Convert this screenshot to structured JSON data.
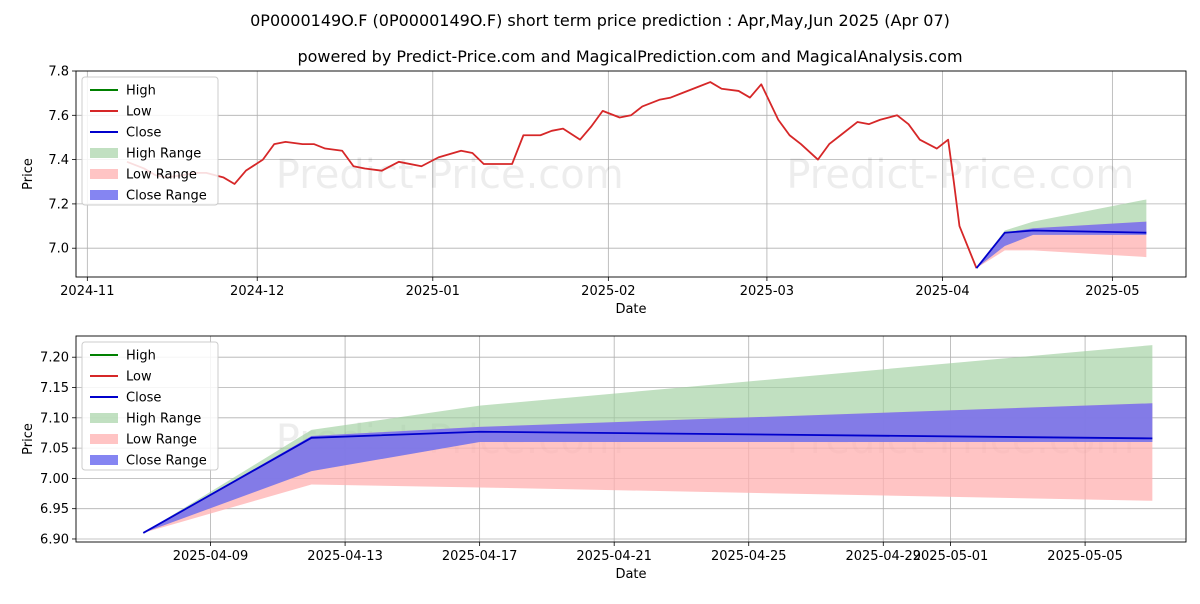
{
  "title": "0P0000149O.F (0P0000149O.F) short term price prediction : Apr,May,Jun 2025 (Apr 07)",
  "subtitle": "powered by Predict-Price.com and MagicalPrediction.com and MagicalAnalysis.com",
  "watermark": "Predict-Price.com",
  "colors": {
    "high": "#008000",
    "low": "#d62728",
    "close": "#0000cc",
    "high_range": "#9fd09f",
    "low_range": "#ffb0b0",
    "close_range": "#7070f0"
  },
  "chart_data": [
    {
      "type": "line",
      "xlabel": "Date",
      "ylabel": "Price",
      "xlim": [
        "2024-10-30",
        "2025-05-14"
      ],
      "ylim": [
        6.87,
        7.8
      ],
      "x_ticks": [
        "2024-11",
        "2024-12",
        "2025-01",
        "2025-02",
        "2025-03",
        "2025-04",
        "2025-05"
      ],
      "x_tick_dates": [
        "2024-11-01",
        "2024-12-01",
        "2025-01-01",
        "2025-02-01",
        "2025-03-01",
        "2025-04-01",
        "2025-05-01"
      ],
      "y_ticks": [
        "6.8",
        "7.0",
        "7.2",
        "7.4",
        "7.6",
        "7.8"
      ],
      "grid": true,
      "legend_position": "top-left",
      "legend": [
        "High",
        "Low",
        "Close",
        "High Range",
        "Low Range",
        "Close Range"
      ],
      "history": {
        "x": [
          "2024-11-08",
          "2024-11-11",
          "2024-11-13",
          "2024-11-15",
          "2024-11-18",
          "2024-11-20",
          "2024-11-22",
          "2024-11-25",
          "2024-11-27",
          "2024-11-29",
          "2024-12-02",
          "2024-12-04",
          "2024-12-06",
          "2024-12-09",
          "2024-12-11",
          "2024-12-13",
          "2024-12-16",
          "2024-12-18",
          "2024-12-20",
          "2024-12-23",
          "2024-12-26",
          "2024-12-30",
          "2025-01-02",
          "2025-01-06",
          "2025-01-08",
          "2025-01-10",
          "2025-01-13",
          "2025-01-15",
          "2025-01-17",
          "2025-01-20",
          "2025-01-22",
          "2025-01-24",
          "2025-01-27",
          "2025-01-29",
          "2025-01-31",
          "2025-02-03",
          "2025-02-05",
          "2025-02-07",
          "2025-02-10",
          "2025-02-12",
          "2025-02-14",
          "2025-02-17",
          "2025-02-19",
          "2025-02-21",
          "2025-02-24",
          "2025-02-26",
          "2025-02-28",
          "2025-03-03",
          "2025-03-05",
          "2025-03-07",
          "2025-03-10",
          "2025-03-12",
          "2025-03-14",
          "2025-03-17",
          "2025-03-19",
          "2025-03-21",
          "2025-03-24",
          "2025-03-26",
          "2025-03-28",
          "2025-03-31",
          "2025-04-02",
          "2025-04-03",
          "2025-04-04",
          "2025-04-07"
        ],
        "low": [
          7.39,
          7.36,
          7.33,
          7.32,
          7.33,
          7.34,
          7.34,
          7.32,
          7.29,
          7.35,
          7.4,
          7.47,
          7.48,
          7.47,
          7.47,
          7.45,
          7.44,
          7.37,
          7.36,
          7.35,
          7.39,
          7.37,
          7.41,
          7.44,
          7.43,
          7.38,
          7.38,
          7.38,
          7.51,
          7.51,
          7.53,
          7.54,
          7.49,
          7.55,
          7.62,
          7.59,
          7.6,
          7.64,
          7.67,
          7.68,
          7.7,
          7.73,
          7.75,
          7.72,
          7.71,
          7.68,
          7.74,
          7.58,
          7.51,
          7.47,
          7.4,
          7.47,
          7.51,
          7.57,
          7.56,
          7.58,
          7.6,
          7.56,
          7.49,
          7.45,
          7.49,
          7.3,
          7.1,
          6.91
        ],
        "close": [
          7.39,
          7.36,
          7.33,
          7.32,
          7.33,
          7.34,
          7.34,
          7.32,
          7.29,
          7.35,
          7.4,
          7.47,
          7.48,
          7.47,
          7.47,
          7.45,
          7.44,
          7.37,
          7.36,
          7.35,
          7.39,
          7.37,
          7.41,
          7.44,
          7.43,
          7.38,
          7.38,
          7.38,
          7.51,
          7.51,
          7.53,
          7.54,
          7.49,
          7.55,
          7.62,
          7.59,
          7.6,
          7.64,
          7.67,
          7.68,
          7.7,
          7.73,
          7.75,
          7.72,
          7.71,
          7.68,
          7.74,
          7.58,
          7.51,
          7.47,
          7.4,
          7.47,
          7.51,
          7.57,
          7.56,
          7.58,
          7.6,
          7.56,
          7.49,
          7.45,
          7.49,
          7.3,
          7.1,
          6.91
        ]
      },
      "forecast": {
        "x": [
          "2025-04-07",
          "2025-04-12",
          "2025-04-17",
          "2025-05-07"
        ],
        "high": [
          6.91,
          7.08,
          7.12,
          7.22
        ],
        "low": [
          6.91,
          6.99,
          6.99,
          6.96
        ],
        "close": [
          6.91,
          7.07,
          7.08,
          7.07
        ],
        "close_band_upper": [
          6.91,
          7.07,
          7.09,
          7.12
        ],
        "close_band_lower": [
          6.91,
          7.01,
          7.06,
          7.06
        ]
      }
    },
    {
      "type": "line",
      "xlabel": "Date",
      "ylabel": "Price",
      "xlim": [
        "2025-04-05",
        "2025-05-08"
      ],
      "ylim": [
        6.895,
        7.235
      ],
      "x_ticks": [
        "2025-04-09",
        "2025-04-13",
        "2025-04-17",
        "2025-04-21",
        "2025-04-25",
        "2025-04-29",
        "2025-05-01",
        "2025-05-05"
      ],
      "y_ticks": [
        "6.90",
        "6.95",
        "7.00",
        "7.05",
        "7.10",
        "7.15",
        "7.20"
      ],
      "grid": true,
      "legend_position": "top-left",
      "legend": [
        "High",
        "Low",
        "Close",
        "High Range",
        "Low Range",
        "Close Range"
      ],
      "forecast": {
        "x": [
          "2025-04-07",
          "2025-04-12",
          "2025-04-17",
          "2025-05-07"
        ],
        "high_upper": [
          6.91,
          7.08,
          7.12,
          7.22
        ],
        "low_lower": [
          6.91,
          6.99,
          6.985,
          6.963
        ],
        "close": [
          6.91,
          7.067,
          7.077,
          7.066
        ],
        "close_band_upper": [
          6.91,
          7.07,
          7.085,
          7.124
        ],
        "close_band_lower": [
          6.91,
          7.012,
          7.06,
          7.06
        ]
      }
    }
  ]
}
